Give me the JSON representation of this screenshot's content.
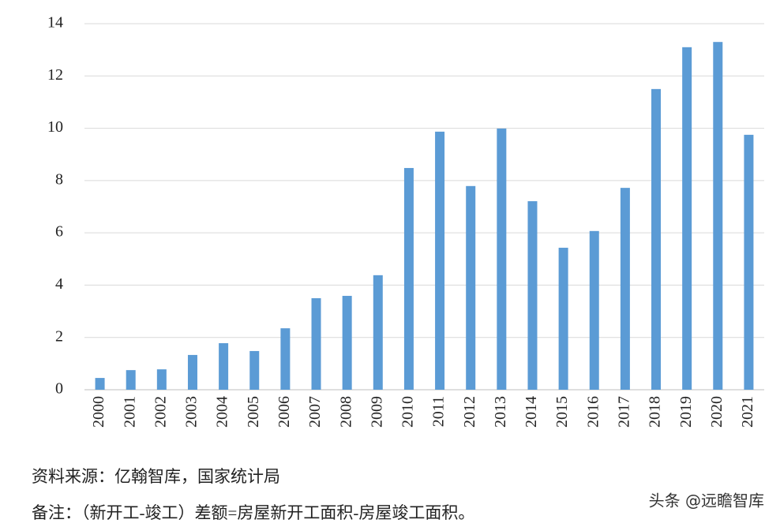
{
  "chart_data": {
    "type": "bar",
    "categories": [
      "2000",
      "2001",
      "2002",
      "2003",
      "2004",
      "2005",
      "2006",
      "2007",
      "2008",
      "2009",
      "2010",
      "2011",
      "2012",
      "2013",
      "2014",
      "2015",
      "2016",
      "2017",
      "2018",
      "2019",
      "2020",
      "2021"
    ],
    "values": [
      0.45,
      0.75,
      0.78,
      1.33,
      1.78,
      1.48,
      2.35,
      3.5,
      3.59,
      4.38,
      8.48,
      9.87,
      7.79,
      9.99,
      7.21,
      5.43,
      6.07,
      7.72,
      11.5,
      13.1,
      13.3,
      9.75
    ],
    "color": "#5b9bd5",
    "ylim": [
      0,
      14
    ],
    "yticks": [
      0,
      2,
      4,
      6,
      8,
      10,
      12,
      14
    ],
    "grid": true,
    "source": "资料来源：亿翰智库，国家统计局",
    "note": "备注：（新开工-竣工）差额=房屋新开工面积-房屋竣工面积。",
    "watermark": "头条 @远瞻智库"
  }
}
